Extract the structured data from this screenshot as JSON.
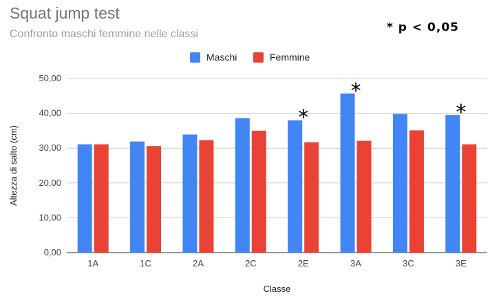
{
  "chart_data": {
    "type": "bar",
    "title": "Squat jump test",
    "subtitle": "Confronto maschi femmine nelle classi",
    "note": "* p < 0,05",
    "xlabel": "Classe",
    "ylabel": "Altezza di salto (cm)",
    "ylim": [
      0,
      50
    ],
    "yticks": [
      "0,00",
      "10,00",
      "20,00",
      "30,00",
      "40,00",
      "50,00"
    ],
    "categories": [
      "1A",
      "1C",
      "2A",
      "2C",
      "2E",
      "3A",
      "3C",
      "3E"
    ],
    "series": [
      {
        "name": "Maschi",
        "color": "#4285f4",
        "values": [
          31.1,
          31.9,
          33.9,
          38.6,
          38.0,
          45.7,
          39.8,
          39.5
        ]
      },
      {
        "name": "Femmine",
        "color": "#ea4335",
        "values": [
          31.1,
          30.6,
          32.3,
          35.0,
          31.7,
          32.1,
          35.1,
          31.1
        ]
      }
    ],
    "significance_marker": "*",
    "significant_categories": [
      "2E",
      "3A",
      "3E"
    ],
    "grid": true,
    "legend_position": "top-center"
  }
}
